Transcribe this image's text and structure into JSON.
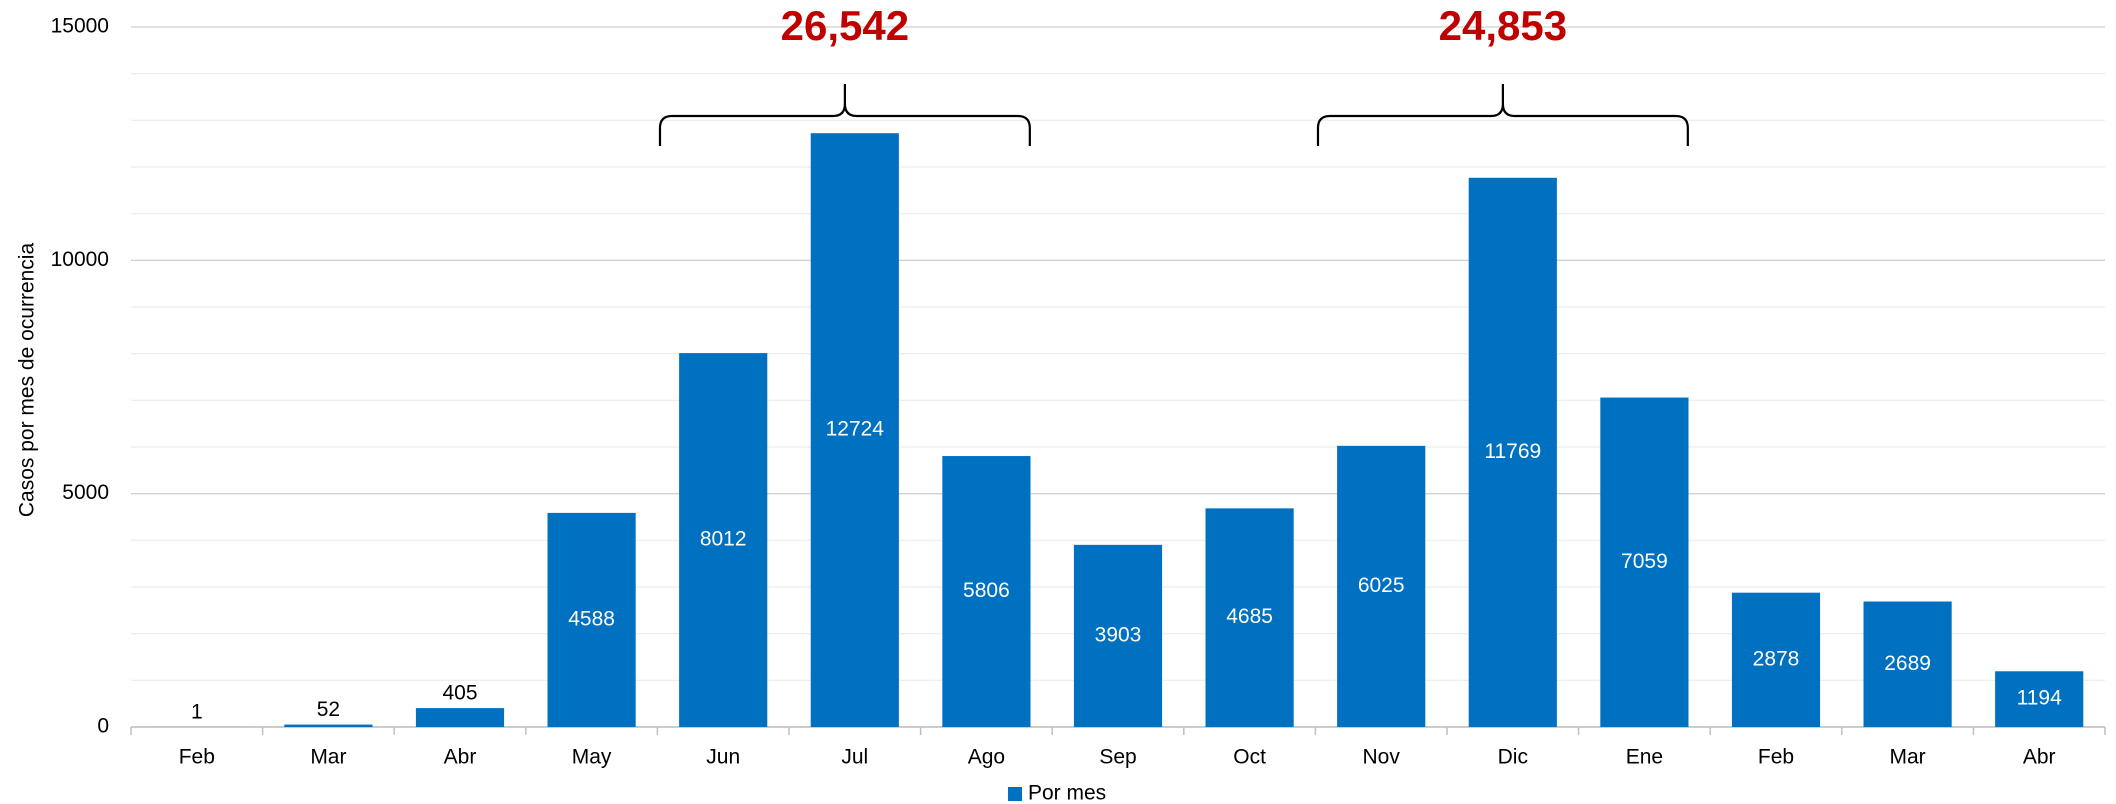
{
  "chart_data": {
    "type": "bar",
    "y_label": "Casos por mes de ocurrencia",
    "categories": [
      "Feb",
      "Mar",
      "Abr",
      "May",
      "Jun",
      "Jul",
      "Ago",
      "Sep",
      "Oct",
      "Nov",
      "Dic",
      "Ene",
      "Feb",
      "Mar",
      "Abr"
    ],
    "series": [
      {
        "name": "Por mes",
        "color": "#0070c0",
        "values": [
          1,
          52,
          405,
          4588,
          8012,
          12724,
          5806,
          3903,
          4685,
          6025,
          11769,
          7059,
          2878,
          2689,
          1194
        ]
      }
    ],
    "ylim": [
      0,
      15000
    ],
    "yticks": [
      0,
      5000,
      10000,
      15000
    ],
    "minor_yticks": [
      1000,
      2000,
      3000,
      4000,
      6000,
      7000,
      8000,
      9000,
      11000,
      12000,
      13000,
      14000
    ],
    "grid": true,
    "legend": "bottom",
    "annotations": [
      {
        "text": "26,542",
        "color": "#c00000"
      },
      {
        "text": "24,853",
        "color": "#c00000"
      }
    ]
  }
}
